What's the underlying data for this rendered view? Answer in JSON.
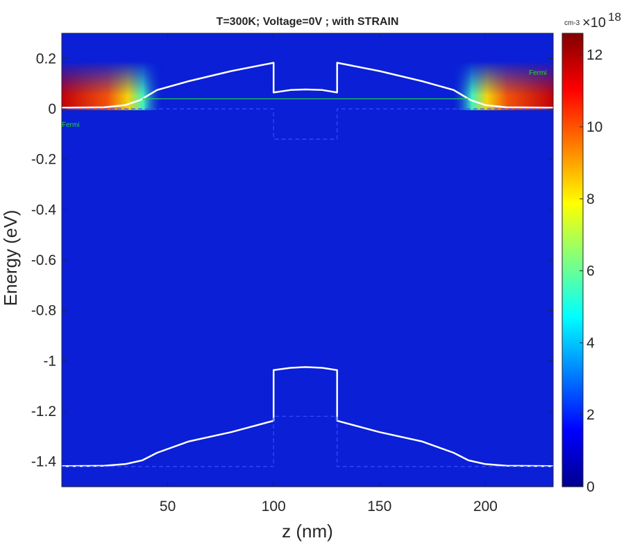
{
  "chart_data": {
    "type": "heatmap",
    "title": "T=300K; Voltage=0V ; with STRAIN",
    "xlabel": "z (nm)",
    "ylabel": "Energy (eV)",
    "xlim": [
      0,
      232
    ],
    "ylim": [
      -1.5,
      0.3
    ],
    "xticks": [
      50,
      100,
      150,
      200
    ],
    "xtick_labels": [
      "50",
      "100",
      "150",
      "200"
    ],
    "yticks": [
      0.2,
      0,
      -0.2,
      -0.4,
      -0.6,
      -0.8,
      -1,
      -1.2,
      -1.4
    ],
    "ytick_labels": [
      "0.2",
      "0",
      "-0.2",
      "-0.4",
      "-0.6",
      "-0.8",
      "-1",
      "-1.2",
      "-1.4"
    ],
    "colorbar": {
      "range": [
        0,
        12.6
      ],
      "ticks": [
        0,
        2,
        4,
        6,
        8,
        10,
        12
      ],
      "tick_labels": [
        "0",
        "2",
        "4",
        "6",
        "8",
        "10",
        "12"
      ],
      "unit": "cm-3",
      "multiplier": "×10",
      "exponent": "18"
    },
    "fermi_level": 0.04,
    "fermi_labels": [
      "Fermi",
      "Fermi"
    ],
    "series": [
      {
        "role": "conduction band (strained)",
        "color": "#ffffff",
        "style": "solid",
        "points": [
          [
            0,
            0.005
          ],
          [
            20,
            0.006
          ],
          [
            30,
            0.015
          ],
          [
            37,
            0.035
          ],
          [
            45,
            0.075
          ],
          [
            60,
            0.11
          ],
          [
            80,
            0.15
          ],
          [
            100,
            0.183
          ],
          [
            100,
            0.065
          ],
          [
            108,
            0.075
          ],
          [
            115,
            0.077
          ],
          [
            123,
            0.075
          ],
          [
            130,
            0.065
          ],
          [
            130,
            0.183
          ],
          [
            150,
            0.15
          ],
          [
            170,
            0.11
          ],
          [
            185,
            0.075
          ],
          [
            193,
            0.035
          ],
          [
            200,
            0.015
          ],
          [
            210,
            0.006
          ],
          [
            232,
            0.005
          ]
        ]
      },
      {
        "role": "valence band (strained)",
        "color": "#ffffff",
        "style": "solid",
        "points": [
          [
            0,
            -1.418
          ],
          [
            20,
            -1.417
          ],
          [
            30,
            -1.41
          ],
          [
            38,
            -1.395
          ],
          [
            45,
            -1.365
          ],
          [
            60,
            -1.32
          ],
          [
            80,
            -1.283
          ],
          [
            100,
            -1.238
          ],
          [
            100,
            -1.037
          ],
          [
            108,
            -1.028
          ],
          [
            115,
            -1.025
          ],
          [
            123,
            -1.028
          ],
          [
            130,
            -1.037
          ],
          [
            130,
            -1.238
          ],
          [
            150,
            -1.283
          ],
          [
            170,
            -1.32
          ],
          [
            185,
            -1.365
          ],
          [
            192,
            -1.395
          ],
          [
            200,
            -1.41
          ],
          [
            210,
            -1.417
          ],
          [
            232,
            -1.418
          ]
        ]
      },
      {
        "role": "conduction band edge (unstrained)",
        "color": "#3b4dff",
        "style": "dashed",
        "points": [
          [
            0,
            0.0
          ],
          [
            100,
            0.0
          ],
          [
            100,
            -0.12
          ],
          [
            130,
            -0.12
          ],
          [
            130,
            0.0
          ],
          [
            232,
            0.0
          ]
        ]
      },
      {
        "role": "valence band edge (unstrained)",
        "color": "#3b4dff",
        "style": "dashed",
        "points": [
          [
            0,
            -1.42
          ],
          [
            100,
            -1.42
          ],
          [
            100,
            -1.22
          ],
          [
            130,
            -1.22
          ],
          [
            130,
            -1.42
          ],
          [
            232,
            -1.42
          ]
        ]
      }
    ]
  }
}
